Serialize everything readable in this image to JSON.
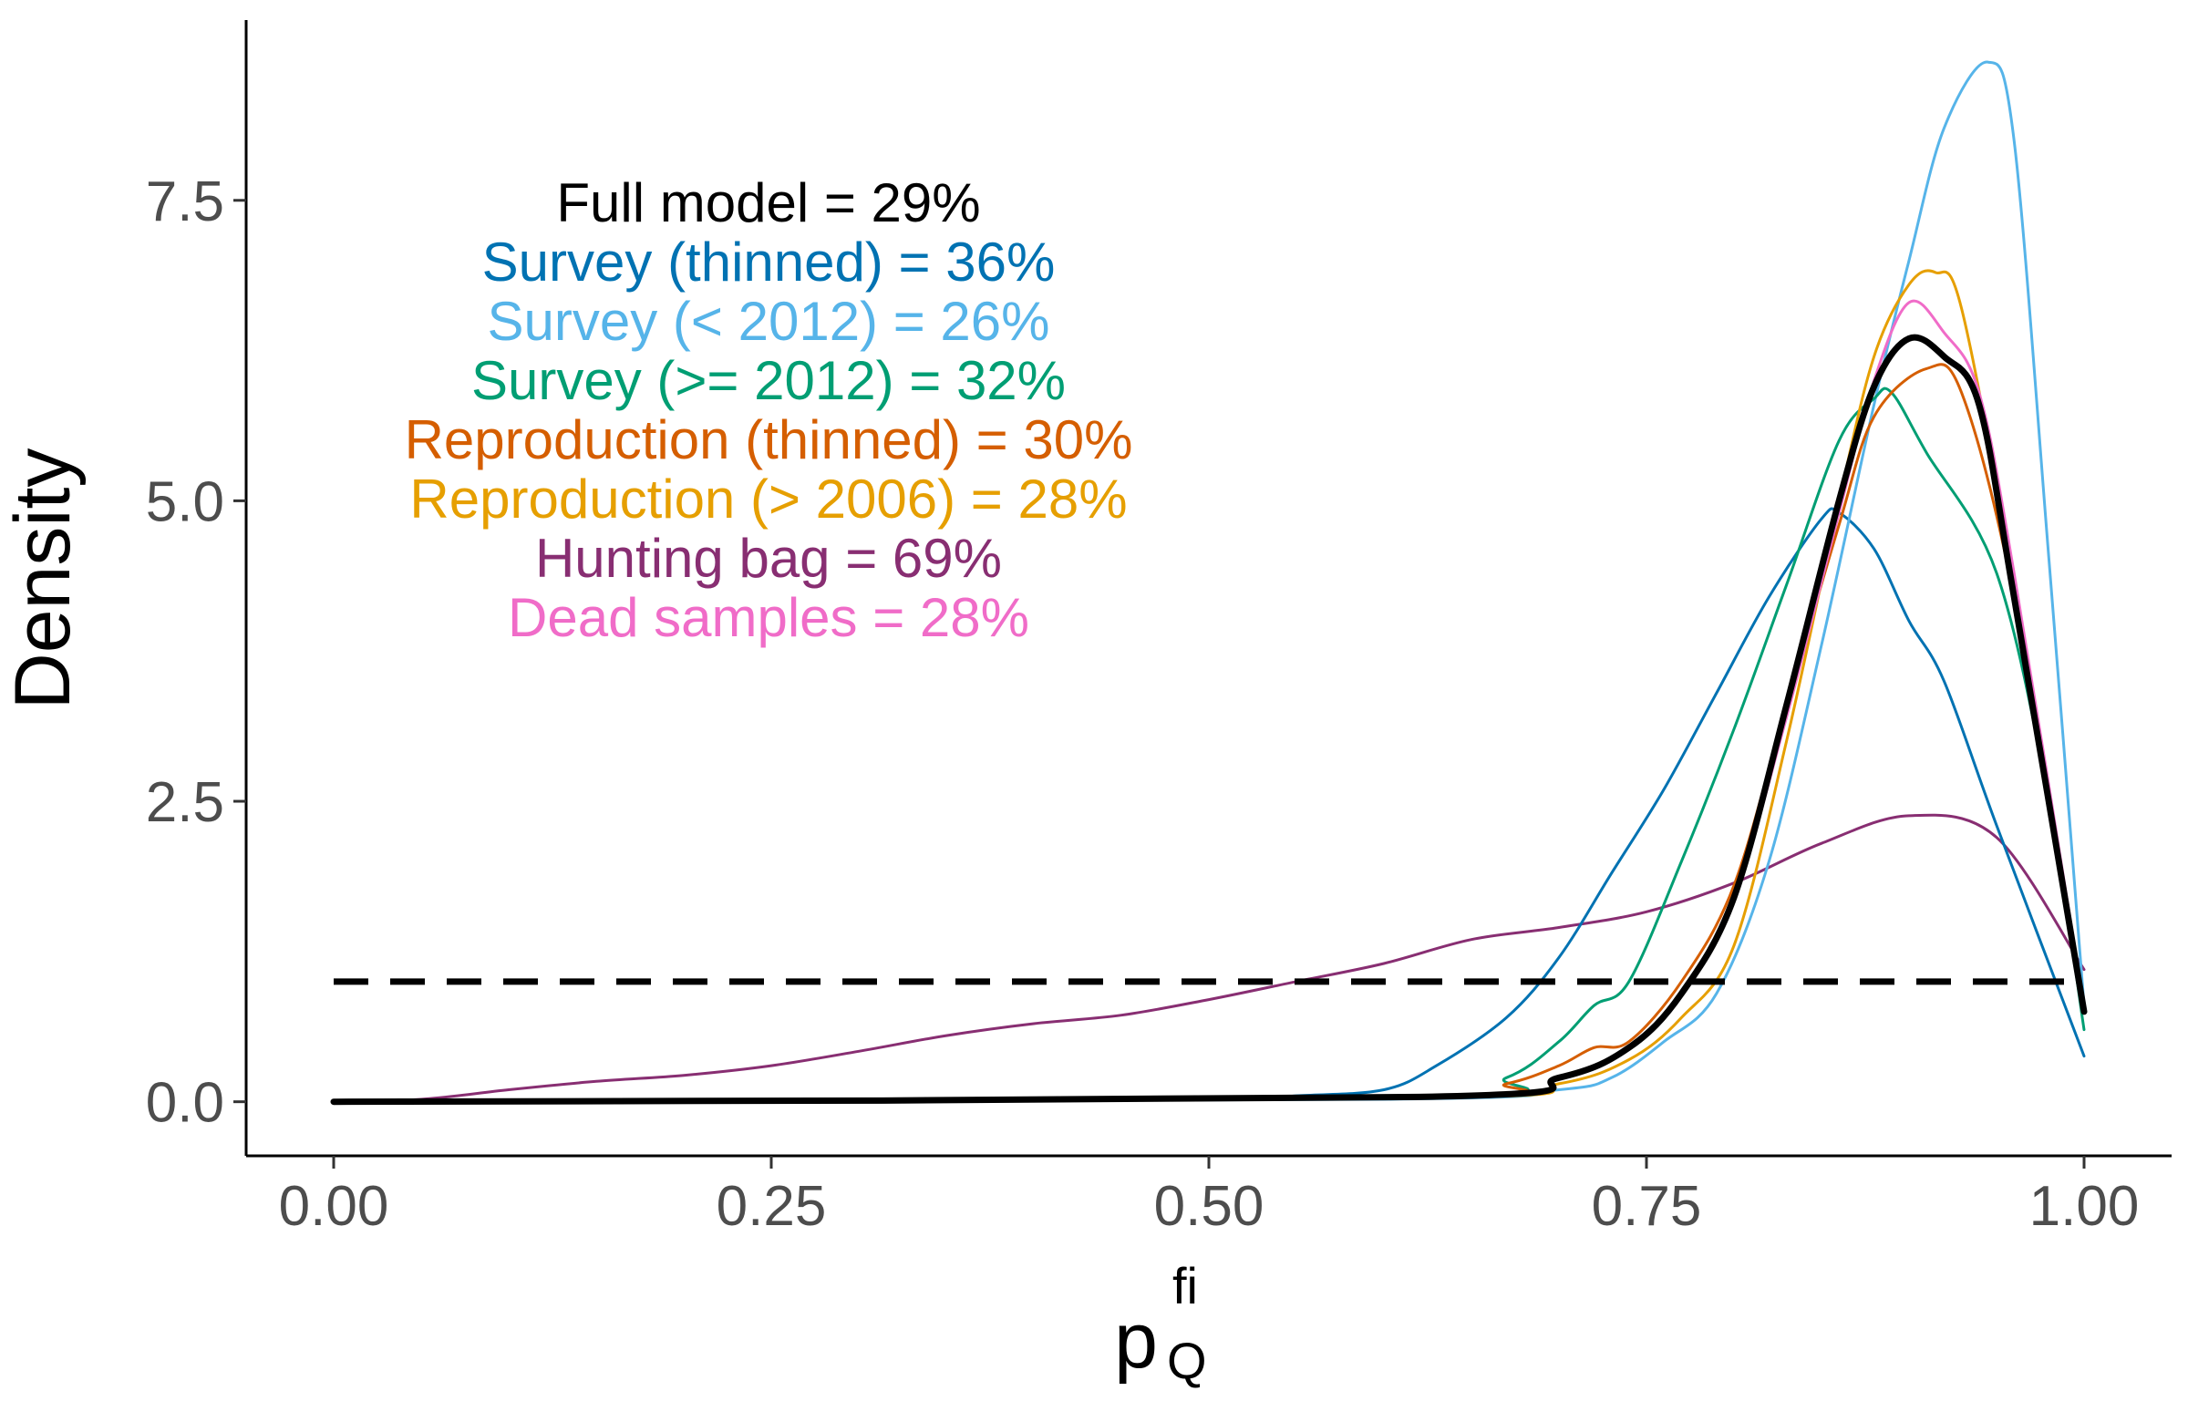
{
  "chart_data": {
    "type": "line",
    "xlabel": {
      "base": "p",
      "superscript": "fi",
      "subscript": "Q"
    },
    "ylabel": "Density",
    "xlim": [
      -0.05,
      1.05
    ],
    "ylim": [
      -0.45,
      9.0
    ],
    "x_ticks": [
      0.0,
      0.25,
      0.5,
      0.75,
      1.0
    ],
    "x_tick_labels": [
      "0.00",
      "0.25",
      "0.50",
      "0.75",
      "1.00"
    ],
    "y_ticks": [
      0.0,
      2.5,
      5.0,
      7.5
    ],
    "y_tick_labels": [
      "0.0",
      "2.5",
      "5.0",
      "7.5"
    ],
    "grid": false,
    "reference_line": {
      "y": 1.0,
      "x_range": [
        0,
        1
      ],
      "style": "dashed",
      "color": "#000000"
    },
    "annotations": [
      {
        "text": "Full model = 29%",
        "color": "#000000"
      },
      {
        "text": "Survey (thinned) = 36%",
        "color": "#0072B2"
      },
      {
        "text": "Survey (< 2012) = 26%",
        "color": "#56B4E9"
      },
      {
        "text": "Survey (>= 2012) = 32%",
        "color": "#009E73"
      },
      {
        "text": "Reproduction (thinned) = 30%",
        "color": "#D55E00"
      },
      {
        "text": "Reproduction (> 2006) = 28%",
        "color": "#E69F00"
      },
      {
        "text": "Hunting bag = 69%",
        "color": "#882E72"
      },
      {
        "text": "Dead samples = 28%",
        "color": "#F06CC8"
      }
    ],
    "series": [
      {
        "color": "#882E72",
        "width": 3,
        "x": [
          0,
          0.05,
          0.1,
          0.15,
          0.2,
          0.25,
          0.3,
          0.35,
          0.4,
          0.45,
          0.5,
          0.55,
          0.6,
          0.65,
          0.7,
          0.75,
          0.8,
          0.85,
          0.9,
          0.95,
          1.0
        ],
        "y": [
          0.0,
          0.02,
          0.1,
          0.17,
          0.22,
          0.3,
          0.42,
          0.55,
          0.65,
          0.72,
          0.85,
          1.0,
          1.15,
          1.35,
          1.45,
          1.58,
          1.82,
          2.15,
          2.38,
          2.2,
          1.1
        ]
      },
      {
        "color": "#0072B2",
        "width": 3,
        "x": [
          0,
          0.5,
          0.55,
          0.6,
          0.63,
          0.67,
          0.7,
          0.73,
          0.76,
          0.79,
          0.82,
          0.85,
          0.86,
          0.88,
          0.9,
          0.92,
          0.95,
          1.0
        ],
        "y": [
          0.0,
          0.02,
          0.05,
          0.1,
          0.3,
          0.7,
          1.2,
          1.9,
          2.6,
          3.4,
          4.2,
          4.85,
          4.9,
          4.6,
          4.0,
          3.5,
          2.3,
          0.38
        ]
      },
      {
        "color": "#56B4E9",
        "width": 3,
        "x": [
          0,
          0.6,
          0.7,
          0.73,
          0.76,
          0.79,
          0.82,
          0.85,
          0.88,
          0.9,
          0.92,
          0.945,
          0.96,
          0.98,
          1.0
        ],
        "y": [
          0.0,
          0.02,
          0.1,
          0.2,
          0.5,
          0.9,
          2.0,
          3.8,
          5.8,
          7.0,
          8.1,
          8.65,
          8.0,
          4.5,
          0.8
        ]
      },
      {
        "color": "#009E73",
        "width": 3,
        "x": [
          0,
          0.62,
          0.67,
          0.7,
          0.72,
          0.74,
          0.77,
          0.8,
          0.83,
          0.86,
          0.88,
          0.89,
          0.91,
          0.95,
          0.98,
          1.0
        ],
        "y": [
          0.0,
          0.05,
          0.2,
          0.5,
          0.8,
          1.0,
          2.0,
          3.1,
          4.3,
          5.5,
          5.85,
          5.9,
          5.4,
          4.4,
          2.5,
          0.6
        ]
      },
      {
        "color": "#D55E00",
        "width": 3,
        "x": [
          0,
          0.62,
          0.67,
          0.7,
          0.72,
          0.74,
          0.77,
          0.8,
          0.83,
          0.86,
          0.88,
          0.91,
          0.93,
          0.96,
          1.0
        ],
        "y": [
          0.0,
          0.05,
          0.15,
          0.3,
          0.45,
          0.5,
          1.0,
          1.8,
          3.3,
          4.8,
          5.7,
          6.1,
          5.9,
          4.2,
          0.8
        ]
      },
      {
        "color": "#E69F00",
        "width": 3,
        "x": [
          0,
          0.62,
          0.7,
          0.74,
          0.77,
          0.8,
          0.83,
          0.86,
          0.88,
          0.9,
          0.915,
          0.93,
          0.96,
          1.0
        ],
        "y": [
          0.0,
          0.03,
          0.15,
          0.35,
          0.7,
          1.3,
          3.0,
          5.0,
          6.2,
          6.8,
          6.9,
          6.6,
          4.3,
          0.8
        ]
      },
      {
        "color": "#F06CC8",
        "width": 3,
        "x": [
          0,
          0.62,
          0.7,
          0.74,
          0.77,
          0.8,
          0.83,
          0.86,
          0.88,
          0.9,
          0.92,
          0.94,
          0.96,
          1.0
        ],
        "y": [
          0.0,
          0.04,
          0.2,
          0.45,
          0.9,
          1.7,
          3.2,
          4.9,
          6.0,
          6.65,
          6.4,
          5.9,
          4.4,
          0.8
        ]
      },
      {
        "color": "#000000",
        "width": 7,
        "x": [
          0,
          0.62,
          0.7,
          0.74,
          0.77,
          0.8,
          0.83,
          0.86,
          0.88,
          0.9,
          0.92,
          0.94,
          0.96,
          1.0
        ],
        "y": [
          0.0,
          0.04,
          0.2,
          0.45,
          0.9,
          1.7,
          3.3,
          5.0,
          5.95,
          6.35,
          6.2,
          5.8,
          4.2,
          0.75
        ]
      }
    ]
  }
}
